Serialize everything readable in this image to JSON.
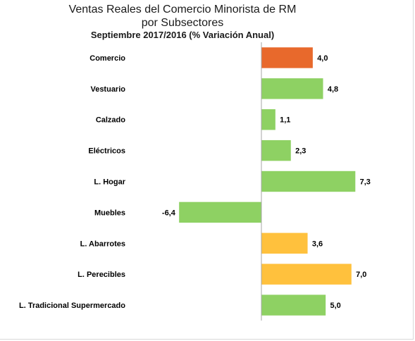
{
  "chart_data": {
    "type": "bar",
    "orientation": "horizontal",
    "title": "Ventas Reales del Comercio Minorista de RM",
    "title_line2": "por Subsectores",
    "subtitle": "Septiembre 2017/2016 (% Variación Anual)",
    "categories": [
      "Comercio",
      "Vestuario",
      "Calzado",
      "Eléctricos",
      "L. Hogar",
      "Muebles",
      "L. Abarrotes",
      "L. Perecibles",
      "L. Tradicional Supermercado"
    ],
    "values": [
      4.0,
      4.8,
      1.1,
      2.3,
      7.3,
      -6.4,
      3.6,
      7.0,
      5.0
    ],
    "value_labels": [
      "4,0",
      "4,8",
      "1,1",
      "2,3",
      "7,3",
      "-6,4",
      "3,6",
      "7,0",
      "5,0"
    ],
    "bar_colors": [
      "#e8692c",
      "#8ed163",
      "#8ed163",
      "#8ed163",
      "#8ed163",
      "#8ed163",
      "#ffc13d",
      "#ffc13d",
      "#8ed163"
    ],
    "colors": {
      "comercio": "#e8692c",
      "subsector_green": "#8ed163",
      "supermercado_yellow": "#ffc13d",
      "axis": "#a6a6a6"
    },
    "xlim": [
      -8.0,
      8.0
    ],
    "grid": false,
    "legend": "none"
  }
}
